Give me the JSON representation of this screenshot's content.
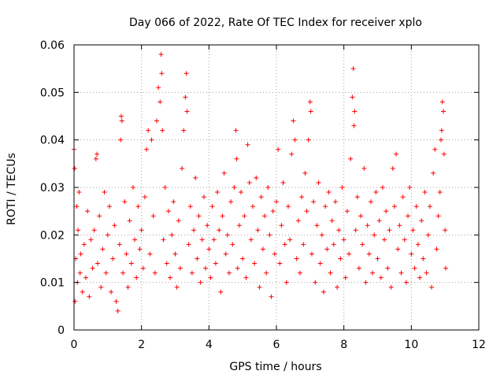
{
  "chart_data": {
    "type": "scatter",
    "title": "Day 066 of 2022, Rate Of TEC Index for receiver xplo",
    "xlabel": "GPS time / hours",
    "ylabel": "ROTI / TECUs",
    "xlim": [
      0,
      12
    ],
    "ylim": [
      0,
      0.06
    ],
    "xticks": [
      0,
      2,
      4,
      6,
      8,
      10,
      12
    ],
    "xtick_labels": [
      "0",
      "2",
      "4",
      "6",
      "8",
      "10",
      "12"
    ],
    "yticks": [
      0,
      0.01,
      0.02,
      0.03,
      0.04,
      0.05,
      0.06
    ],
    "ytick_labels": [
      "0",
      "0.01",
      "0.02",
      "0.03",
      "0.04",
      "0.05",
      "0.06"
    ],
    "grid": true,
    "marker": "+",
    "color": "#ff0000",
    "series": [
      {
        "name": "xplo",
        "points": [
          [
            0.0,
            0.038
          ],
          [
            0.02,
            0.034
          ],
          [
            0.03,
            0.006
          ],
          [
            0.05,
            0.015
          ],
          [
            0.08,
            0.026
          ],
          [
            0.1,
            0.01
          ],
          [
            0.12,
            0.021
          ],
          [
            0.15,
            0.029
          ],
          [
            0.18,
            0.012
          ],
          [
            0.2,
            0.016
          ],
          [
            0.25,
            0.008
          ],
          [
            0.3,
            0.018
          ],
          [
            0.35,
            0.011
          ],
          [
            0.4,
            0.025
          ],
          [
            0.45,
            0.007
          ],
          [
            0.5,
            0.019
          ],
          [
            0.55,
            0.013
          ],
          [
            0.6,
            0.021
          ],
          [
            0.65,
            0.036
          ],
          [
            0.68,
            0.037
          ],
          [
            0.7,
            0.014
          ],
          [
            0.75,
            0.024
          ],
          [
            0.8,
            0.009
          ],
          [
            0.85,
            0.017
          ],
          [
            0.9,
            0.029
          ],
          [
            0.95,
            0.012
          ],
          [
            1.0,
            0.02
          ],
          [
            1.05,
            0.026
          ],
          [
            1.1,
            0.008
          ],
          [
            1.15,
            0.015
          ],
          [
            1.2,
            0.022
          ],
          [
            1.25,
            0.006
          ],
          [
            1.3,
            0.004
          ],
          [
            1.35,
            0.018
          ],
          [
            1.38,
            0.04
          ],
          [
            1.4,
            0.045
          ],
          [
            1.42,
            0.044
          ],
          [
            1.45,
            0.012
          ],
          [
            1.5,
            0.027
          ],
          [
            1.55,
            0.016
          ],
          [
            1.6,
            0.009
          ],
          [
            1.65,
            0.023
          ],
          [
            1.7,
            0.014
          ],
          [
            1.75,
            0.03
          ],
          [
            1.8,
            0.019
          ],
          [
            1.85,
            0.011
          ],
          [
            1.9,
            0.026
          ],
          [
            1.95,
            0.017
          ],
          [
            2.0,
            0.021
          ],
          [
            2.05,
            0.013
          ],
          [
            2.1,
            0.028
          ],
          [
            2.15,
            0.038
          ],
          [
            2.2,
            0.042
          ],
          [
            2.25,
            0.016
          ],
          [
            2.3,
            0.04
          ],
          [
            2.35,
            0.024
          ],
          [
            2.4,
            0.012
          ],
          [
            2.45,
            0.044
          ],
          [
            2.5,
            0.051
          ],
          [
            2.55,
            0.048
          ],
          [
            2.58,
            0.058
          ],
          [
            2.6,
            0.054
          ],
          [
            2.62,
            0.042
          ],
          [
            2.65,
            0.019
          ],
          [
            2.7,
            0.03
          ],
          [
            2.75,
            0.014
          ],
          [
            2.8,
            0.025
          ],
          [
            2.85,
            0.011
          ],
          [
            2.9,
            0.02
          ],
          [
            2.95,
            0.027
          ],
          [
            3.0,
            0.016
          ],
          [
            3.05,
            0.009
          ],
          [
            3.1,
            0.023
          ],
          [
            3.15,
            0.013
          ],
          [
            3.2,
            0.034
          ],
          [
            3.25,
            0.042
          ],
          [
            3.3,
            0.049
          ],
          [
            3.33,
            0.054
          ],
          [
            3.35,
            0.046
          ],
          [
            3.4,
            0.018
          ],
          [
            3.45,
            0.026
          ],
          [
            3.5,
            0.012
          ],
          [
            3.55,
            0.021
          ],
          [
            3.6,
            0.032
          ],
          [
            3.65,
            0.015
          ],
          [
            3.7,
            0.024
          ],
          [
            3.75,
            0.01
          ],
          [
            3.8,
            0.019
          ],
          [
            3.85,
            0.028
          ],
          [
            3.9,
            0.013
          ],
          [
            3.95,
            0.022
          ],
          [
            4.0,
            0.017
          ],
          [
            4.05,
            0.011
          ],
          [
            4.1,
            0.026
          ],
          [
            4.15,
            0.019
          ],
          [
            4.2,
            0.014
          ],
          [
            4.25,
            0.029
          ],
          [
            4.3,
            0.021
          ],
          [
            4.35,
            0.008
          ],
          [
            4.4,
            0.024
          ],
          [
            4.45,
            0.033
          ],
          [
            4.5,
            0.016
          ],
          [
            4.55,
            0.02
          ],
          [
            4.6,
            0.012
          ],
          [
            4.65,
            0.027
          ],
          [
            4.7,
            0.018
          ],
          [
            4.75,
            0.03
          ],
          [
            4.8,
            0.042
          ],
          [
            4.82,
            0.036
          ],
          [
            4.85,
            0.013
          ],
          [
            4.9,
            0.022
          ],
          [
            4.95,
            0.029
          ],
          [
            5.0,
            0.015
          ],
          [
            5.05,
            0.024
          ],
          [
            5.1,
            0.011
          ],
          [
            5.15,
            0.039
          ],
          [
            5.2,
            0.031
          ],
          [
            5.25,
            0.019
          ],
          [
            5.3,
            0.026
          ],
          [
            5.35,
            0.014
          ],
          [
            5.4,
            0.032
          ],
          [
            5.45,
            0.021
          ],
          [
            5.5,
            0.009
          ],
          [
            5.55,
            0.028
          ],
          [
            5.6,
            0.017
          ],
          [
            5.65,
            0.024
          ],
          [
            5.7,
            0.012
          ],
          [
            5.75,
            0.03
          ],
          [
            5.8,
            0.02
          ],
          [
            5.85,
            0.007
          ],
          [
            5.9,
            0.025
          ],
          [
            5.95,
            0.016
          ],
          [
            6.0,
            0.027
          ],
          [
            6.05,
            0.038
          ],
          [
            6.1,
            0.014
          ],
          [
            6.15,
            0.022
          ],
          [
            6.2,
            0.031
          ],
          [
            6.25,
            0.018
          ],
          [
            6.3,
            0.01
          ],
          [
            6.35,
            0.026
          ],
          [
            6.4,
            0.019
          ],
          [
            6.45,
            0.037
          ],
          [
            6.5,
            0.044
          ],
          [
            6.55,
            0.04
          ],
          [
            6.6,
            0.015
          ],
          [
            6.65,
            0.023
          ],
          [
            6.7,
            0.012
          ],
          [
            6.75,
            0.028
          ],
          [
            6.8,
            0.018
          ],
          [
            6.85,
            0.033
          ],
          [
            6.9,
            0.025
          ],
          [
            6.95,
            0.04
          ],
          [
            7.0,
            0.048
          ],
          [
            7.02,
            0.046
          ],
          [
            7.05,
            0.016
          ],
          [
            7.1,
            0.027
          ],
          [
            7.15,
            0.01
          ],
          [
            7.2,
            0.022
          ],
          [
            7.25,
            0.031
          ],
          [
            7.3,
            0.014
          ],
          [
            7.35,
            0.02
          ],
          [
            7.4,
            0.008
          ],
          [
            7.45,
            0.026
          ],
          [
            7.5,
            0.017
          ],
          [
            7.55,
            0.029
          ],
          [
            7.6,
            0.012
          ],
          [
            7.65,
            0.023
          ],
          [
            7.7,
            0.018
          ],
          [
            7.75,
            0.027
          ],
          [
            7.8,
            0.009
          ],
          [
            7.85,
            0.021
          ],
          [
            7.9,
            0.015
          ],
          [
            7.95,
            0.03
          ],
          [
            8.0,
            0.019
          ],
          [
            8.05,
            0.011
          ],
          [
            8.1,
            0.025
          ],
          [
            8.15,
            0.016
          ],
          [
            8.2,
            0.036
          ],
          [
            8.25,
            0.049
          ],
          [
            8.28,
            0.055
          ],
          [
            8.3,
            0.043
          ],
          [
            8.32,
            0.046
          ],
          [
            8.35,
            0.021
          ],
          [
            8.4,
            0.028
          ],
          [
            8.45,
            0.013
          ],
          [
            8.5,
            0.024
          ],
          [
            8.55,
            0.018
          ],
          [
            8.6,
            0.034
          ],
          [
            8.65,
            0.01
          ],
          [
            8.7,
            0.022
          ],
          [
            8.75,
            0.016
          ],
          [
            8.8,
            0.027
          ],
          [
            8.85,
            0.012
          ],
          [
            8.9,
            0.02
          ],
          [
            8.95,
            0.029
          ],
          [
            9.0,
            0.015
          ],
          [
            9.05,
            0.023
          ],
          [
            9.1,
            0.011
          ],
          [
            9.15,
            0.03
          ],
          [
            9.2,
            0.019
          ],
          [
            9.25,
            0.025
          ],
          [
            9.3,
            0.013
          ],
          [
            9.35,
            0.021
          ],
          [
            9.4,
            0.009
          ],
          [
            9.45,
            0.034
          ],
          [
            9.5,
            0.026
          ],
          [
            9.55,
            0.037
          ],
          [
            9.6,
            0.017
          ],
          [
            9.65,
            0.022
          ],
          [
            9.7,
            0.012
          ],
          [
            9.75,
            0.028
          ],
          [
            9.8,
            0.019
          ],
          [
            9.85,
            0.01
          ],
          [
            9.9,
            0.024
          ],
          [
            9.95,
            0.03
          ],
          [
            10.0,
            0.016
          ],
          [
            10.05,
            0.021
          ],
          [
            10.1,
            0.013
          ],
          [
            10.15,
            0.026
          ],
          [
            10.2,
            0.018
          ],
          [
            10.25,
            0.011
          ],
          [
            10.3,
            0.023
          ],
          [
            10.35,
            0.015
          ],
          [
            10.4,
            0.029
          ],
          [
            10.45,
            0.012
          ],
          [
            10.5,
            0.02
          ],
          [
            10.55,
            0.026
          ],
          [
            10.6,
            0.009
          ],
          [
            10.65,
            0.033
          ],
          [
            10.7,
            0.038
          ],
          [
            10.75,
            0.017
          ],
          [
            10.8,
            0.024
          ],
          [
            10.85,
            0.029
          ],
          [
            10.88,
            0.04
          ],
          [
            10.9,
            0.042
          ],
          [
            10.92,
            0.048
          ],
          [
            10.95,
            0.046
          ],
          [
            10.97,
            0.037
          ],
          [
            11.0,
            0.021
          ],
          [
            11.02,
            0.013
          ]
        ]
      }
    ]
  }
}
